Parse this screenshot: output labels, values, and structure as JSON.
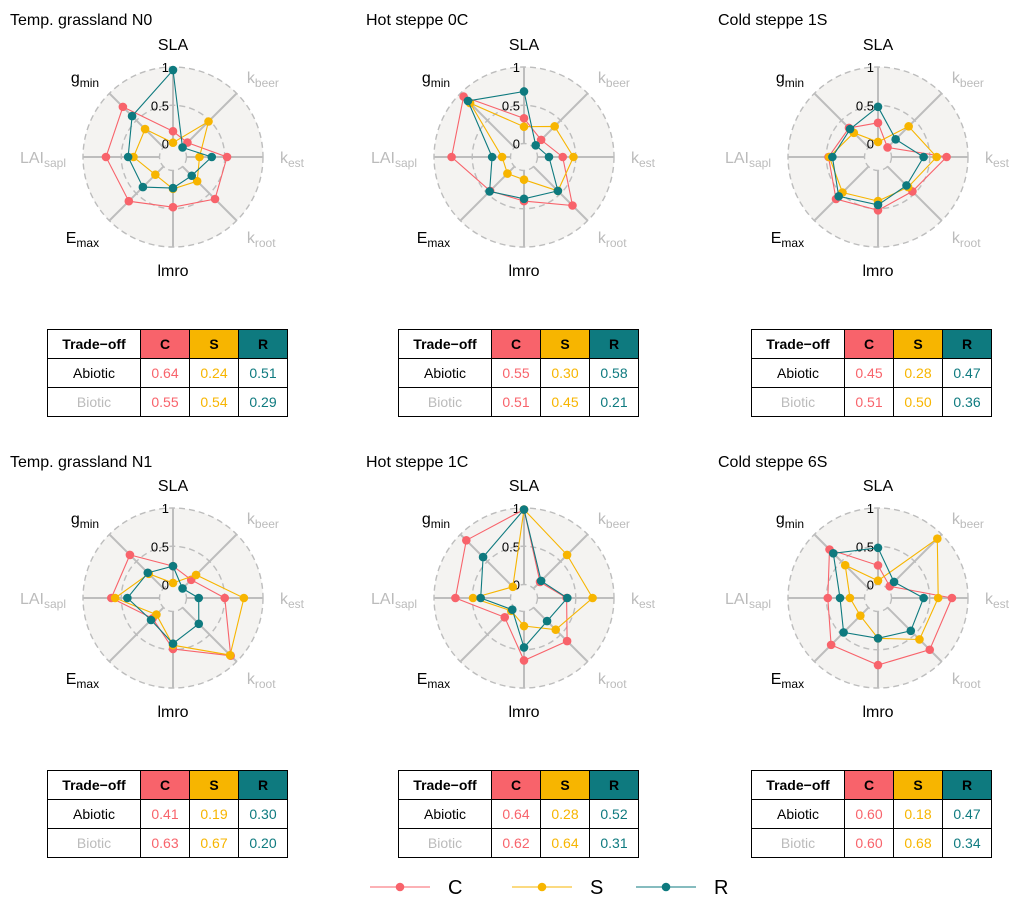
{
  "colors": {
    "C": "#F8636B",
    "S": "#F7B500",
    "R": "#0E7A7F",
    "grey_text": "#BBBBBB",
    "panel_bg": "#F4F3F1"
  },
  "axes": [
    {
      "name": "SLA",
      "label": "SLA",
      "sub": "",
      "grey": false
    },
    {
      "name": "kbeer",
      "label": "k",
      "sub": "beer",
      "grey": true
    },
    {
      "name": "kest",
      "label": "k",
      "sub": "est",
      "grey": true
    },
    {
      "name": "kroot",
      "label": "k",
      "sub": "root",
      "grey": true
    },
    {
      "name": "lmro",
      "label": "lmro",
      "sub": "",
      "grey": false
    },
    {
      "name": "Emax",
      "label": "E",
      "sub": "max",
      "grey": false
    },
    {
      "name": "LAIsapl",
      "label": "LAI",
      "sub": "sapl",
      "grey": true
    },
    {
      "name": "gmin",
      "label": "g",
      "sub": "min",
      "grey": false
    }
  ],
  "radial_ticks": [
    "0",
    "0.5",
    "1"
  ],
  "table_header": [
    "Trade−off",
    "C",
    "S",
    "R"
  ],
  "legend": [
    "C",
    "S",
    "R"
  ],
  "chart_data": [
    {
      "type": "radar",
      "title": "Temp. grassland N0",
      "rlim": [
        0,
        1
      ],
      "series": [
        {
          "name": "C",
          "values": [
            0.16,
            0.09,
            0.53,
            0.6,
            0.48,
            0.64,
            0.7,
            0.75
          ]
        },
        {
          "name": "S",
          "values": [
            0.01,
            0.48,
            0.17,
            0.27,
            0.24,
            0.15,
            0.34,
            0.34
          ]
        },
        {
          "name": "R",
          "values": [
            0.96,
            0.0,
            0.33,
            0.17,
            0.23,
            0.38,
            0.41,
            0.58
          ]
        }
      ],
      "table": [
        {
          "label": "Abiotic",
          "C": "0.64",
          "S": "0.24",
          "R": "0.51"
        },
        {
          "label": "Biotic",
          "C": "0.55",
          "S": "0.54",
          "R": "0.29"
        }
      ]
    },
    {
      "type": "radar",
      "title": "Hot steppe 0C",
      "rlim": [
        0,
        1
      ],
      "series": [
        {
          "name": "C",
          "values": [
            0.33,
            0.14,
            0.33,
            0.72,
            0.4,
            0.45,
            0.77,
            0.94
          ]
        },
        {
          "name": "S",
          "values": [
            0.22,
            0.39,
            0.47,
            0.45,
            0.12,
            0.13,
            0.11,
            0.82
          ]
        },
        {
          "name": "R",
          "values": [
            0.68,
            0.04,
            0.15,
            0.45,
            0.37,
            0.46,
            0.24,
            0.86
          ]
        }
      ],
      "table": [
        {
          "label": "Abiotic",
          "C": "0.55",
          "S": "0.30",
          "R": "0.58"
        },
        {
          "label": "Biotic",
          "C": "0.51",
          "S": "0.45",
          "R": "0.21"
        }
      ]
    },
    {
      "type": "radar",
      "title": "Cold steppe 1S",
      "rlim": [
        0,
        1
      ],
      "series": [
        {
          "name": "C",
          "values": [
            0.27,
            0.0,
            0.72,
            0.46,
            0.52,
            0.6,
            0.47,
            0.36
          ]
        },
        {
          "name": "S",
          "values": [
            0.02,
            0.39,
            0.59,
            0.38,
            0.4,
            0.48,
            0.46,
            0.27
          ]
        },
        {
          "name": "R",
          "values": [
            0.48,
            0.15,
            0.42,
            0.35,
            0.45,
            0.55,
            0.42,
            0.34
          ]
        }
      ],
      "table": [
        {
          "label": "Abiotic",
          "C": "0.45",
          "S": "0.28",
          "R": "0.47"
        },
        {
          "label": "Biotic",
          "C": "0.51",
          "S": "0.50",
          "R": "0.36"
        }
      ]
    },
    {
      "type": "radar",
      "title": "Temp. grassland N1",
      "rlim": [
        0,
        1
      ],
      "series": [
        {
          "name": "C",
          "values": [
            0.24,
            0.16,
            0.5,
            0.89,
            0.49,
            0.2,
            0.63,
            0.62
          ]
        },
        {
          "name": "S",
          "values": [
            0.02,
            0.25,
            0.75,
            0.88,
            0.44,
            0.13,
            0.58,
            0.27
          ]
        },
        {
          "name": "R",
          "values": [
            0.24,
            0.0,
            0.16,
            0.3,
            0.42,
            0.23,
            0.42,
            0.29
          ]
        }
      ],
      "table": [
        {
          "label": "Abiotic",
          "C": "0.41",
          "S": "0.19",
          "R": "0.30"
        },
        {
          "label": "Biotic",
          "C": "0.63",
          "S": "0.67",
          "R": "0.20"
        }
      ]
    },
    {
      "type": "radar",
      "title": "Hot steppe 1C",
      "rlim": [
        0,
        1
      ],
      "series": [
        {
          "name": "C",
          "values": [
            0.98,
            0.12,
            0.38,
            0.62,
            0.64,
            0.18,
            0.72,
            0.89
          ]
        },
        {
          "name": "S",
          "values": [
            0.98,
            0.62,
            0.72,
            0.41,
            0.19,
            0.06,
            0.49,
            0.03
          ]
        },
        {
          "name": "R",
          "values": [
            0.98,
            0.14,
            0.39,
            0.25,
            0.47,
            0.04,
            0.39,
            0.58
          ]
        }
      ],
      "table": [
        {
          "label": "Abiotic",
          "C": "0.64",
          "S": "0.28",
          "R": "0.52"
        },
        {
          "label": "Biotic",
          "C": "0.62",
          "S": "0.64",
          "R": "0.31"
        }
      ]
    },
    {
      "type": "radar",
      "title": "Cold steppe 6S",
      "rlim": [
        0,
        1
      ],
      "series": [
        {
          "name": "C",
          "values": [
            0.25,
            0.04,
            0.79,
            0.78,
            0.7,
            0.69,
            0.48,
            0.72
          ]
        },
        {
          "name": "S",
          "values": [
            0.05,
            0.92,
            0.61,
            0.59,
            0.35,
            0.15,
            0.19,
            0.43
          ]
        },
        {
          "name": "R",
          "values": [
            0.48,
            0.12,
            0.42,
            0.43,
            0.35,
            0.46,
            0.32,
            0.65
          ]
        }
      ],
      "table": [
        {
          "label": "Abiotic",
          "C": "0.60",
          "S": "0.18",
          "R": "0.47"
        },
        {
          "label": "Biotic",
          "C": "0.60",
          "S": "0.68",
          "R": "0.34"
        }
      ]
    }
  ]
}
